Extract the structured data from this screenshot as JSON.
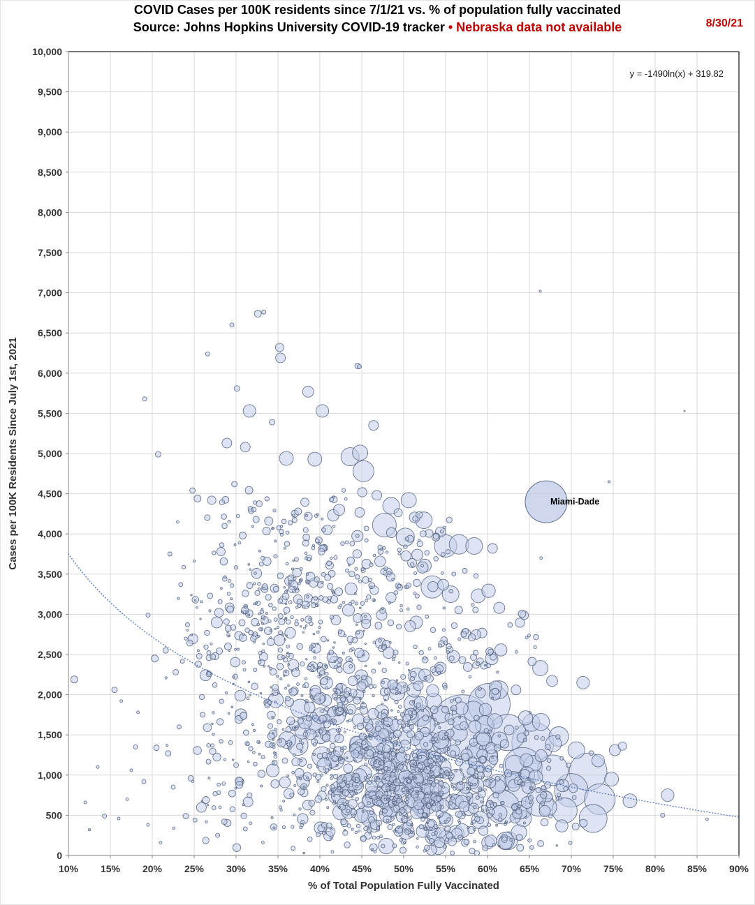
{
  "header": {
    "title_line1": "COVID Cases per 100K residents since 7/1/21 vs. % of population fully vaccinated",
    "subtitle_black": "Source: Johns Hopkins University COVID-19 tracker ",
    "subtitle_red": "• Nebraska data not available",
    "date": "8/30/21"
  },
  "chart_data": {
    "type": "scatter",
    "bubble": true,
    "title": "COVID Cases per 100K residents since 7/1/21 vs. % of population fully vaccinated",
    "subtitle": "Source: Johns Hopkins University COVID-19 tracker • Nebraska data not available",
    "xlabel": "% of Total Population Fully Vaccinated",
    "ylabel": "Cases per 100K Residents Since July 1st, 2021",
    "xlim": [
      10,
      90
    ],
    "ylim": [
      0,
      10000
    ],
    "grid": true,
    "xticks": {
      "values": [
        10,
        15,
        20,
        25,
        30,
        35,
        40,
        45,
        50,
        55,
        60,
        65,
        70,
        75,
        80,
        85,
        90
      ],
      "labels": [
        "10%",
        "15%",
        "20%",
        "25%",
        "30%",
        "35%",
        "40%",
        "45%",
        "50%",
        "55%",
        "60%",
        "65%",
        "70%",
        "75%",
        "80%",
        "85%",
        "90%"
      ]
    },
    "yticks": {
      "values": [
        0,
        500,
        1000,
        1500,
        2000,
        2500,
        3000,
        3500,
        4000,
        4500,
        5000,
        5500,
        6000,
        6500,
        7000,
        7500,
        8000,
        8500,
        9000,
        9500,
        10000
      ],
      "labels": [
        "0",
        "500",
        "1,000",
        "1,500",
        "2,000",
        "2,500",
        "3,000",
        "3,500",
        "4,000",
        "4,500",
        "5,000",
        "5,500",
        "6,000",
        "6,500",
        "7,000",
        "7,500",
        "8,000",
        "8,500",
        "9,000",
        "9,500",
        "10,000"
      ]
    },
    "trendline": {
      "equation": "y = -1490ln(x) + 319.82",
      "a": -1490,
      "b": 319.82,
      "x_domain": [
        0.1,
        0.9
      ],
      "style": "dotted"
    },
    "annotation": {
      "label": "Miami-Dade",
      "x": 67,
      "y": 4400,
      "r": 30
    },
    "points_format": "[vaccinated_pct, cases_per_100k, bubble_radius_px]",
    "points": [
      [
        66.3,
        7020,
        1.5
      ],
      [
        32.6,
        6740,
        5
      ],
      [
        33.3,
        6760,
        3
      ],
      [
        35.2,
        6320,
        6
      ],
      [
        35.3,
        6190,
        7
      ],
      [
        44.7,
        6080,
        3
      ],
      [
        26.6,
        6240,
        3
      ],
      [
        29.5,
        6600,
        3
      ],
      [
        19.1,
        5680,
        3
      ],
      [
        83.5,
        5530,
        1
      ],
      [
        31.6,
        5530,
        9
      ],
      [
        30.1,
        5810,
        4
      ],
      [
        34.3,
        5390,
        4
      ],
      [
        38.6,
        5770,
        8
      ],
      [
        40.3,
        5530,
        9
      ],
      [
        20.7,
        4990,
        4
      ],
      [
        28.9,
        5130,
        7
      ],
      [
        31.1,
        5080,
        7
      ],
      [
        36,
        4940,
        10
      ],
      [
        39.4,
        4930,
        10
      ],
      [
        43.6,
        4960,
        13
      ],
      [
        45.2,
        4780,
        15
      ],
      [
        44.8,
        5010,
        11
      ],
      [
        46.4,
        5350,
        7
      ],
      [
        44.5,
        6090,
        4
      ],
      [
        24.8,
        4540,
        4
      ],
      [
        25.4,
        4440,
        5
      ],
      [
        27.1,
        4420,
        6
      ],
      [
        29.8,
        4620,
        4
      ],
      [
        48.5,
        4350,
        12
      ],
      [
        50.6,
        4420,
        11
      ],
      [
        52.4,
        4170,
        12
      ],
      [
        47.7,
        4110,
        17
      ],
      [
        50.2,
        3960,
        13
      ],
      [
        55,
        3850,
        16
      ],
      [
        56.6,
        3870,
        14
      ],
      [
        58.4,
        3850,
        12
      ],
      [
        60.6,
        3820,
        7
      ],
      [
        53.4,
        3340,
        16
      ],
      [
        55.6,
        3250,
        12
      ],
      [
        58.9,
        3230,
        10
      ],
      [
        61.4,
        3080,
        8
      ],
      [
        74.5,
        4650,
        1.5
      ],
      [
        66.4,
        3700,
        2
      ],
      [
        51.5,
        2900,
        9
      ],
      [
        57.4,
        2760,
        7
      ],
      [
        60.5,
        2450,
        9
      ],
      [
        66.3,
        2330,
        11
      ],
      [
        71.4,
        2150,
        9
      ],
      [
        63.4,
        2060,
        7
      ],
      [
        46.8,
        4480,
        7
      ],
      [
        42.3,
        4300,
        8
      ],
      [
        40.9,
        4050,
        7
      ],
      [
        37.4,
        4280,
        5
      ],
      [
        33.9,
        4160,
        6
      ],
      [
        30.8,
        3980,
        5
      ],
      [
        28.2,
        3780,
        6
      ],
      [
        26.9,
        3230,
        4
      ],
      [
        29.3,
        3060,
        5
      ],
      [
        27.7,
        2900,
        8
      ],
      [
        57,
        1600,
        46
      ],
      [
        60.2,
        1880,
        30
      ],
      [
        62.4,
        1530,
        26
      ],
      [
        65.4,
        1400,
        30
      ],
      [
        64.2,
        1100,
        28
      ],
      [
        67.8,
        1060,
        22
      ],
      [
        72,
        1040,
        27
      ],
      [
        70,
        810,
        24
      ],
      [
        73.4,
        700,
        22
      ],
      [
        72.6,
        460,
        20
      ],
      [
        69.2,
        560,
        18
      ],
      [
        66.2,
        660,
        20
      ],
      [
        63.1,
        820,
        26
      ],
      [
        59.4,
        1230,
        22
      ],
      [
        61.8,
        600,
        24
      ],
      [
        68.5,
        1480,
        14
      ],
      [
        70.6,
        1310,
        12
      ],
      [
        75.2,
        1310,
        8
      ],
      [
        76.1,
        1360,
        6
      ],
      [
        77,
        680,
        10
      ],
      [
        81.5,
        750,
        9
      ],
      [
        80.9,
        500,
        3
      ],
      [
        86.2,
        450,
        2
      ],
      [
        74.8,
        950,
        10
      ],
      [
        73.2,
        1180,
        9
      ],
      [
        10.7,
        2190,
        5
      ],
      [
        14.3,
        490,
        3
      ],
      [
        16.3,
        1920,
        2
      ],
      [
        18.3,
        1780,
        2
      ],
      [
        19.5,
        2990,
        3
      ],
      [
        20.3,
        2450,
        5
      ],
      [
        21.6,
        2550,
        4
      ],
      [
        22.1,
        3750,
        3
      ],
      [
        23.4,
        3370,
        3
      ],
      [
        24.2,
        2870,
        3
      ],
      [
        25.6,
        2480,
        4
      ],
      [
        22.8,
        2280,
        4
      ],
      [
        21.9,
        1270,
        4
      ],
      [
        23.2,
        1600,
        3
      ],
      [
        24.6,
        960,
        4
      ],
      [
        26.4,
        690,
        5
      ],
      [
        25.1,
        440,
        3
      ],
      [
        27.8,
        250,
        3
      ],
      [
        19,
        920,
        3
      ],
      [
        17.5,
        1060,
        2
      ],
      [
        12,
        660,
        2
      ],
      [
        13.5,
        1100,
        2
      ],
      [
        17,
        700,
        2
      ],
      [
        19.5,
        380,
        2
      ],
      [
        21,
        160,
        2
      ],
      [
        18,
        1350,
        3
      ],
      [
        15.5,
        2060,
        4
      ],
      [
        20.5,
        1340,
        4
      ],
      [
        22.5,
        850,
        3
      ],
      [
        24,
        490,
        4
      ],
      [
        16,
        460,
        2
      ],
      [
        12.5,
        320,
        1.5
      ],
      [
        52.5,
        60,
        2
      ],
      [
        55.8,
        30,
        3
      ],
      [
        48.9,
        120,
        3
      ],
      [
        36.8,
        90,
        3
      ],
      [
        33.2,
        160,
        2
      ],
      [
        41.5,
        45,
        2
      ],
      [
        63.9,
        95,
        5
      ],
      [
        57.5,
        170,
        4
      ],
      [
        45.2,
        210,
        4
      ],
      [
        39.8,
        260,
        3
      ],
      [
        31.1,
        330,
        3
      ],
      [
        28.6,
        420,
        4
      ]
    ],
    "cloud_clusters_note": "statistical description of the ~2800-county dense cloud; expanded deterministically by the renderer",
    "cloud_clusters": [
      {
        "n": 430,
        "cx": 50.5,
        "cy": 780,
        "sx": 6.8,
        "sy": 300,
        "r0": 1.5,
        "r1": 13
      },
      {
        "n": 340,
        "cx": 47.5,
        "cy": 1480,
        "sx": 7.2,
        "sy": 360,
        "r0": 1.5,
        "r1": 15
      },
      {
        "n": 250,
        "cx": 40.5,
        "cy": 2250,
        "sx": 7.0,
        "sy": 420,
        "r0": 1.2,
        "r1": 9
      },
      {
        "n": 170,
        "cx": 34.5,
        "cy": 2950,
        "sx": 5.2,
        "sy": 430,
        "r0": 1.2,
        "r1": 7
      },
      {
        "n": 120,
        "cx": 44.5,
        "cy": 3300,
        "sx": 6.0,
        "sy": 380,
        "r0": 1.8,
        "r1": 9
      },
      {
        "n": 80,
        "cx": 35.5,
        "cy": 3950,
        "sx": 4.6,
        "sy": 380,
        "r0": 1.5,
        "r1": 6
      },
      {
        "n": 90,
        "cx": 64.5,
        "cy": 950,
        "sx": 4.2,
        "sy": 330,
        "r0": 2.5,
        "r1": 14
      },
      {
        "n": 70,
        "cx": 52,
        "cy": 330,
        "sx": 8.0,
        "sy": 160,
        "r0": 1.2,
        "r1": 6
      },
      {
        "n": 55,
        "cx": 30.5,
        "cy": 1350,
        "sx": 3.8,
        "sy": 480,
        "r0": 1.2,
        "r1": 6
      },
      {
        "n": 45,
        "cx": 49,
        "cy": 3850,
        "sx": 4.5,
        "sy": 280,
        "r0": 2.5,
        "r1": 10
      },
      {
        "n": 60,
        "cx": 57,
        "cy": 2500,
        "sx": 5.0,
        "sy": 350,
        "r0": 2.0,
        "r1": 9
      },
      {
        "n": 70,
        "cx": 44,
        "cy": 600,
        "sx": 9.0,
        "sy": 220,
        "r0": 1.5,
        "r1": 8
      }
    ],
    "seed": 20210830,
    "colors": {
      "bubble_fill": "#c2cde9",
      "bubble_stroke": "#505f7d",
      "trend_line": "#4f74c2",
      "gridline": "#d9d9d9",
      "axis_dark": "#4a4a4a",
      "axis_light": "#9b9b9b",
      "tick": "#808080",
      "text": "#333333",
      "accent_red": "#c00000"
    },
    "legend": null
  }
}
